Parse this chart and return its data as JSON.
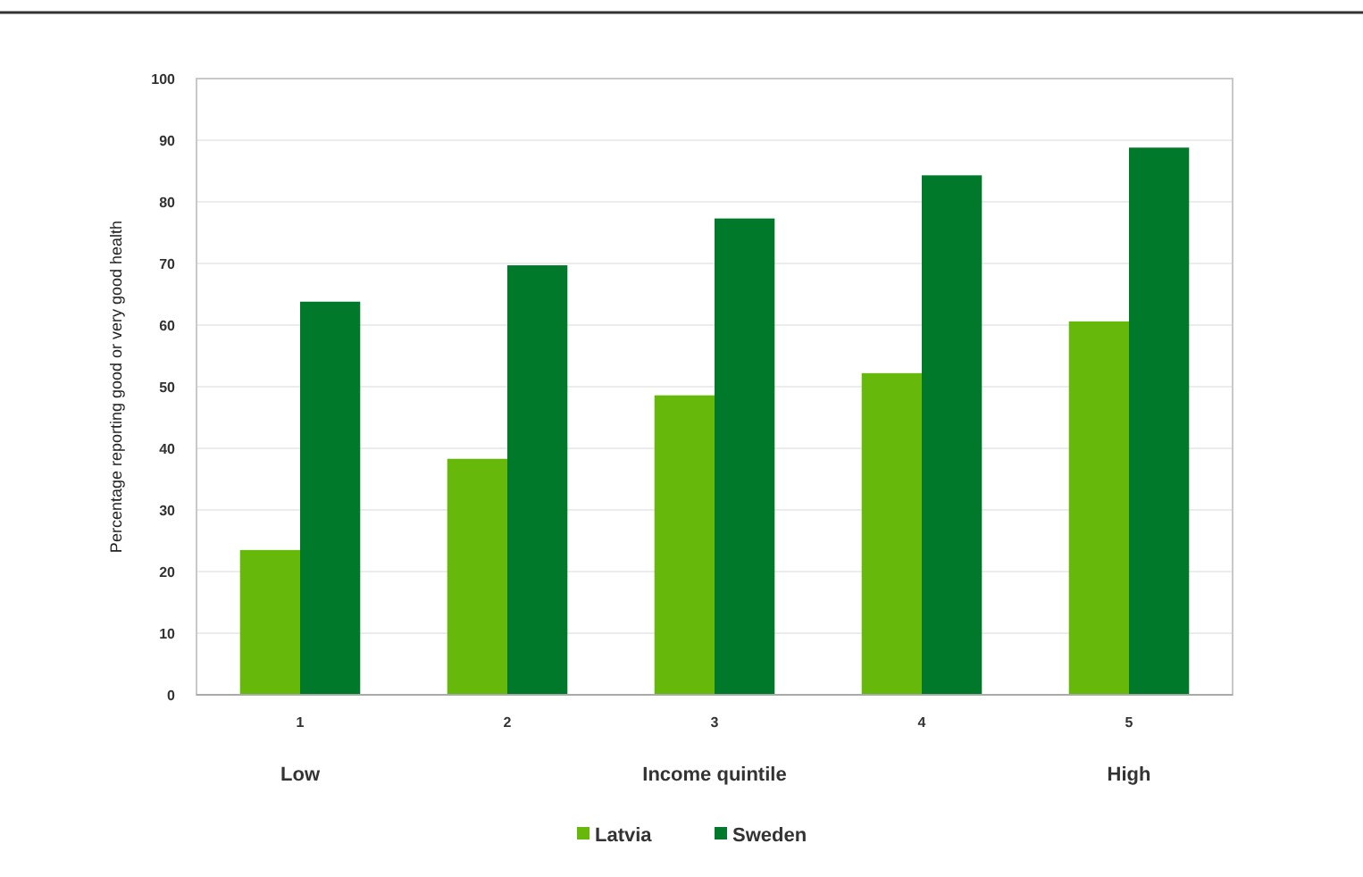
{
  "chart_data": {
    "type": "bar",
    "ylabel": "Percentage reporting good or very good health",
    "xlabel": "Income quintile",
    "annotations": [
      "Low",
      "High"
    ],
    "categories": [
      "1",
      "2",
      "3",
      "4",
      "5"
    ],
    "series": [
      {
        "name": "Latvia",
        "color": "#66b80a",
        "values": [
          23.5,
          38.3,
          48.6,
          52.2,
          60.6
        ]
      },
      {
        "name": "Sweden",
        "color": "#007a2a",
        "values": [
          63.8,
          69.7,
          77.3,
          84.3,
          88.8
        ]
      }
    ],
    "ylim": [
      0,
      100
    ],
    "yticks": [
      0,
      10,
      20,
      30,
      40,
      50,
      60,
      70,
      80,
      90,
      100
    ],
    "grid": "y",
    "legend": "bottom"
  }
}
